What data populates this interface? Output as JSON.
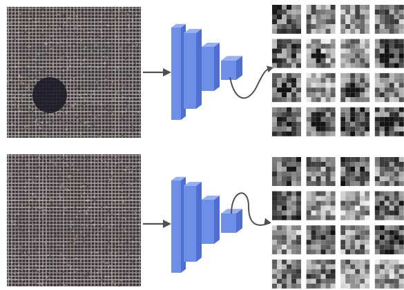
{
  "colors": {
    "background": "#ffffff",
    "cnn_front": "#6d8fe8",
    "cnn_side": "#4e6fcf",
    "cnn_top": "#97b0f2",
    "arrow": "#505050",
    "fabric_dark": "#3a3637",
    "fabric_light": "#b9b3b2",
    "defect": "#1a1a26"
  },
  "panels": [
    {
      "id": "defect-sample",
      "has_defect": true,
      "arrow_to_maps": "curve-down"
    },
    {
      "id": "normal-sample",
      "has_defect": false,
      "arrow_to_maps": "curve-up"
    }
  ],
  "feature_map_grid": {
    "rows": 4,
    "cols": 4
  },
  "icons": {
    "fabric": "fabric-texture-image",
    "network": "cnn-encoder-icon",
    "arrow": "arrow-right-icon",
    "curve": "curved-arrow-icon"
  }
}
